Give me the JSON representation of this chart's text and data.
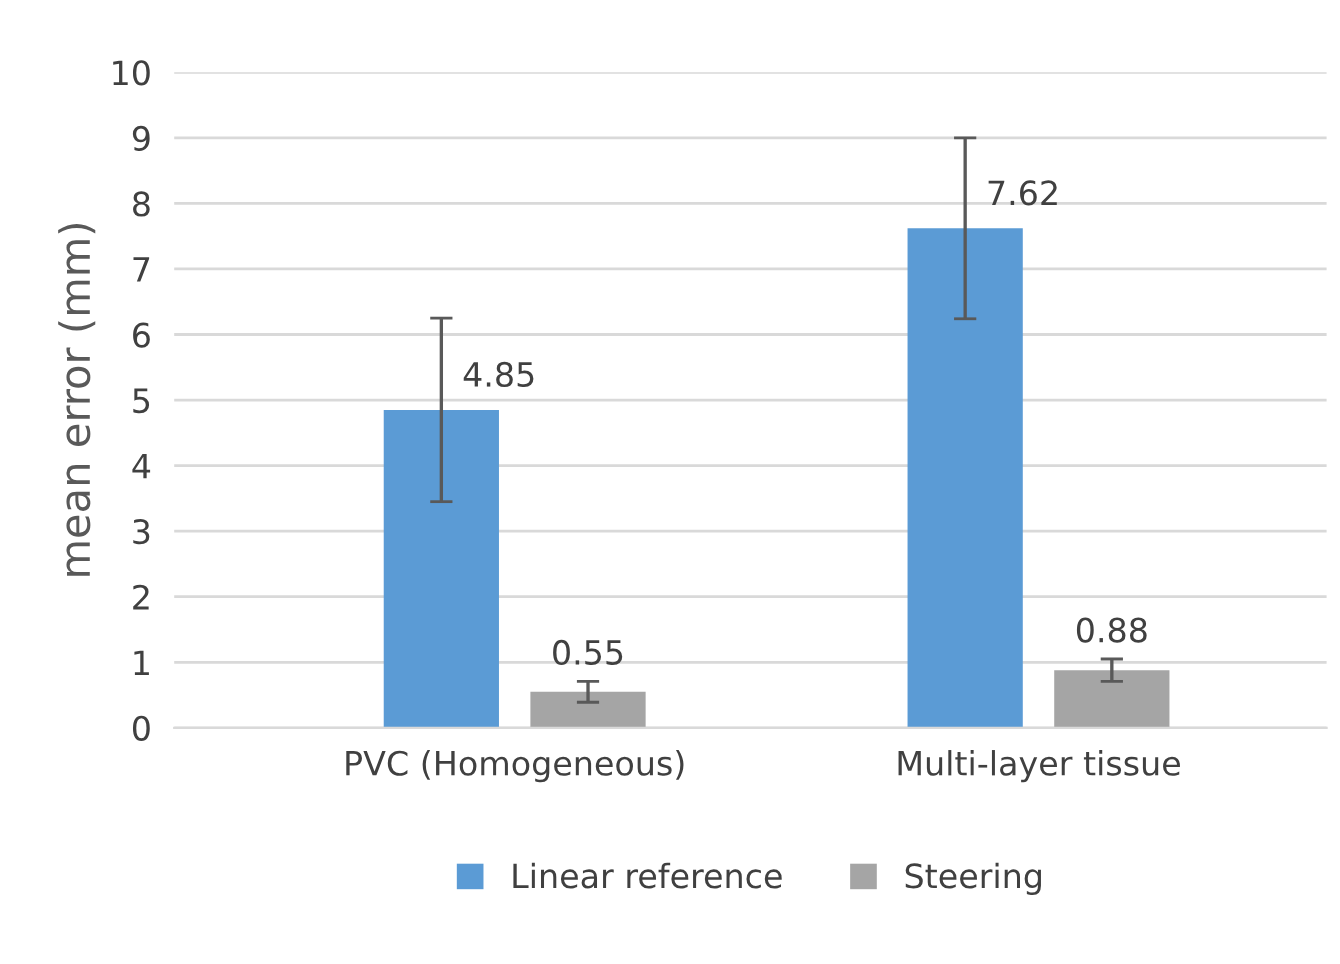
{
  "chart_data": {
    "type": "bar",
    "ylabel": "mean error (mm)",
    "categories": [
      "PVC (Homogeneous)",
      "Multi-layer tissue"
    ],
    "series": [
      {
        "name": "Linear reference",
        "color": "#5b9bd5",
        "values": [
          4.85,
          7.62
        ],
        "errors": [
          1.4,
          1.38
        ]
      },
      {
        "name": "Steering",
        "color": "#a5a5a5",
        "values": [
          0.55,
          0.88
        ],
        "errors": [
          0.16,
          0.17
        ]
      }
    ],
    "ylim": [
      0,
      10
    ],
    "yticks": [
      0,
      1,
      2,
      3,
      4,
      5,
      6,
      7,
      8,
      9,
      10
    ],
    "grid": "y",
    "legend": "bottom",
    "data_labels": true
  }
}
